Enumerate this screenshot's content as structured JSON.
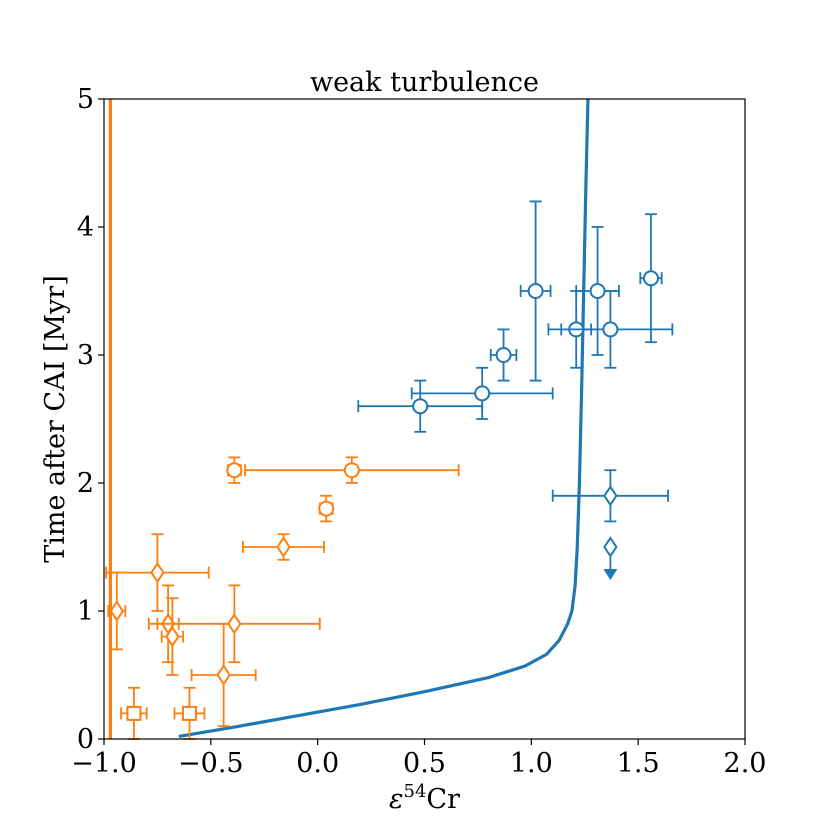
{
  "chart_data": {
    "type": "scatter",
    "title": "weak turbulence",
    "xlabel": "ε",
    "xlabel_sup": "54",
    "xlabel_suffix": "Cr",
    "ylabel": "Time after CAI [Myr]",
    "xlim": [
      -1.0,
      2.0
    ],
    "ylim": [
      0,
      5
    ],
    "xticks": [
      -1.0,
      -0.5,
      0.0,
      0.5,
      1.0,
      1.5,
      2.0
    ],
    "xtick_labels": [
      "−1.0",
      "−0.5",
      "0.0",
      "0.5",
      "1.0",
      "1.5",
      "2.0"
    ],
    "yticks": [
      0,
      1,
      2,
      3,
      4,
      5
    ],
    "ytick_labels": [
      "0",
      "1",
      "2",
      "3",
      "4",
      "5"
    ],
    "grid": false,
    "colors": {
      "blue": "#1f77b4",
      "orange": "#ff7f0e"
    },
    "lines": [
      {
        "name": "orange-vertical-line",
        "color": "#ff7f0e",
        "x": [
          -0.97,
          -0.97
        ],
        "y": [
          0,
          5
        ]
      },
      {
        "name": "blue-model-curve",
        "color": "#1f77b4",
        "x": [
          -0.65,
          -0.4,
          -0.1,
          0.2,
          0.5,
          0.8,
          0.97,
          1.07,
          1.13,
          1.17,
          1.19,
          1.205,
          1.215,
          1.225,
          1.235,
          1.245,
          1.255,
          1.265
        ],
        "y": [
          0.02,
          0.09,
          0.18,
          0.27,
          0.37,
          0.48,
          0.57,
          0.66,
          0.77,
          0.9,
          1.0,
          1.2,
          1.5,
          2.0,
          2.7,
          3.5,
          4.3,
          5.0
        ]
      }
    ],
    "series": [
      {
        "name": "blue-circles",
        "color": "#1f77b4",
        "marker": "circle",
        "points": [
          {
            "x": 0.48,
            "y": 2.6,
            "xerr": 0.29,
            "yerr": 0.2
          },
          {
            "x": 0.77,
            "y": 2.7,
            "xerr": 0.33,
            "yerr": 0.2
          },
          {
            "x": 0.87,
            "y": 3.0,
            "xerr": 0.06,
            "yerr": 0.2
          },
          {
            "x": 1.02,
            "y": 3.5,
            "xerr": 0.07,
            "yerr": 0.7
          },
          {
            "x": 1.21,
            "y": 3.2,
            "xerr": 0.07,
            "yerr": 0.3
          },
          {
            "x": 1.31,
            "y": 3.5,
            "xerr": 0.1,
            "yerr": 0.5
          },
          {
            "x": 1.37,
            "y": 3.2,
            "xerr": 0.29,
            "yerr": 0.3
          },
          {
            "x": 1.56,
            "y": 3.6,
            "xerr": 0.05,
            "yerr": 0.5
          }
        ]
      },
      {
        "name": "blue-diamonds",
        "color": "#1f77b4",
        "marker": "diamond",
        "points": [
          {
            "x": 1.37,
            "y": 1.9,
            "xerr": 0.27,
            "yerr": 0.2
          },
          {
            "x": 1.37,
            "y": 1.5,
            "xerr": 0,
            "yerr": 0,
            "upper_limit_to": 1.25
          }
        ]
      },
      {
        "name": "orange-circles",
        "color": "#ff7f0e",
        "marker": "circle",
        "points": [
          {
            "x": -0.39,
            "y": 2.1,
            "xerr": 0.03,
            "yerr": 0.1
          },
          {
            "x": 0.16,
            "y": 2.1,
            "xerr": 0.5,
            "yerr": 0.1
          },
          {
            "x": 0.04,
            "y": 1.8,
            "xerr": 0.03,
            "yerr": 0.1
          }
        ]
      },
      {
        "name": "orange-diamonds",
        "color": "#ff7f0e",
        "marker": "diamond",
        "points": [
          {
            "x": -0.16,
            "y": 1.5,
            "xerr": 0.19,
            "yerr": 0.1
          },
          {
            "x": -0.75,
            "y": 1.3,
            "xerr": 0.24,
            "yerr": 0.3
          },
          {
            "x": -0.94,
            "y": 1.0,
            "xerr": 0.04,
            "yerr": 0.3
          },
          {
            "x": -0.7,
            "y": 0.9,
            "xerr": 0.05,
            "yerr": 0.3
          },
          {
            "x": -0.68,
            "y": 0.8,
            "xerr": 0.05,
            "yerr": 0.3
          },
          {
            "x": -0.39,
            "y": 0.9,
            "xerr": 0.4,
            "yerr": 0.3
          },
          {
            "x": -0.44,
            "y": 0.5,
            "xerr": 0.15,
            "yerr": 0.4
          }
        ]
      },
      {
        "name": "orange-squares",
        "color": "#ff7f0e",
        "marker": "square",
        "points": [
          {
            "x": -0.86,
            "y": 0.2,
            "xerr": 0.06,
            "yerr": 0.2
          },
          {
            "x": -0.6,
            "y": 0.2,
            "xerr": 0.07,
            "yerr": 0.2
          }
        ]
      }
    ]
  }
}
